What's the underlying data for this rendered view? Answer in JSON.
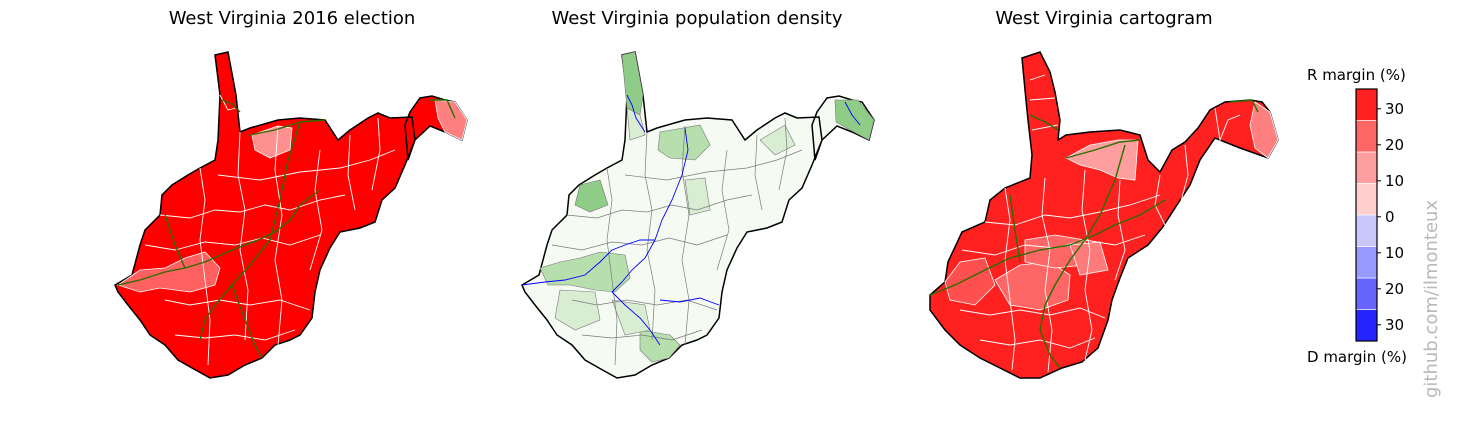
{
  "panels": [
    {
      "title": "West Virginia 2016 election"
    },
    {
      "title": "West Virginia population density"
    },
    {
      "title": "West Virginia cartogram"
    }
  ],
  "colorbar": {
    "top_label": "R margin (%)",
    "bottom_label": "D margin (%)",
    "tick_labels": [
      "30",
      "20",
      "10",
      "0",
      "10",
      "20",
      "30"
    ],
    "colors": [
      "#ff2020",
      "#ff6666",
      "#ff9e9e",
      "#ffcfcf",
      "#c8c8ff",
      "#9999ff",
      "#6666ff",
      "#2424ff"
    ]
  },
  "watermark": "github.com/ilmonteux",
  "colors": {
    "election_fill": "#ff0000",
    "election_light": "#ff8080",
    "density_base": "#f5fbf3",
    "density_light": "#d8edd2",
    "density_mid": "#b6dfad",
    "density_dark": "#8fcc88",
    "river": "#0000ff",
    "road": "#2a6e00"
  }
}
